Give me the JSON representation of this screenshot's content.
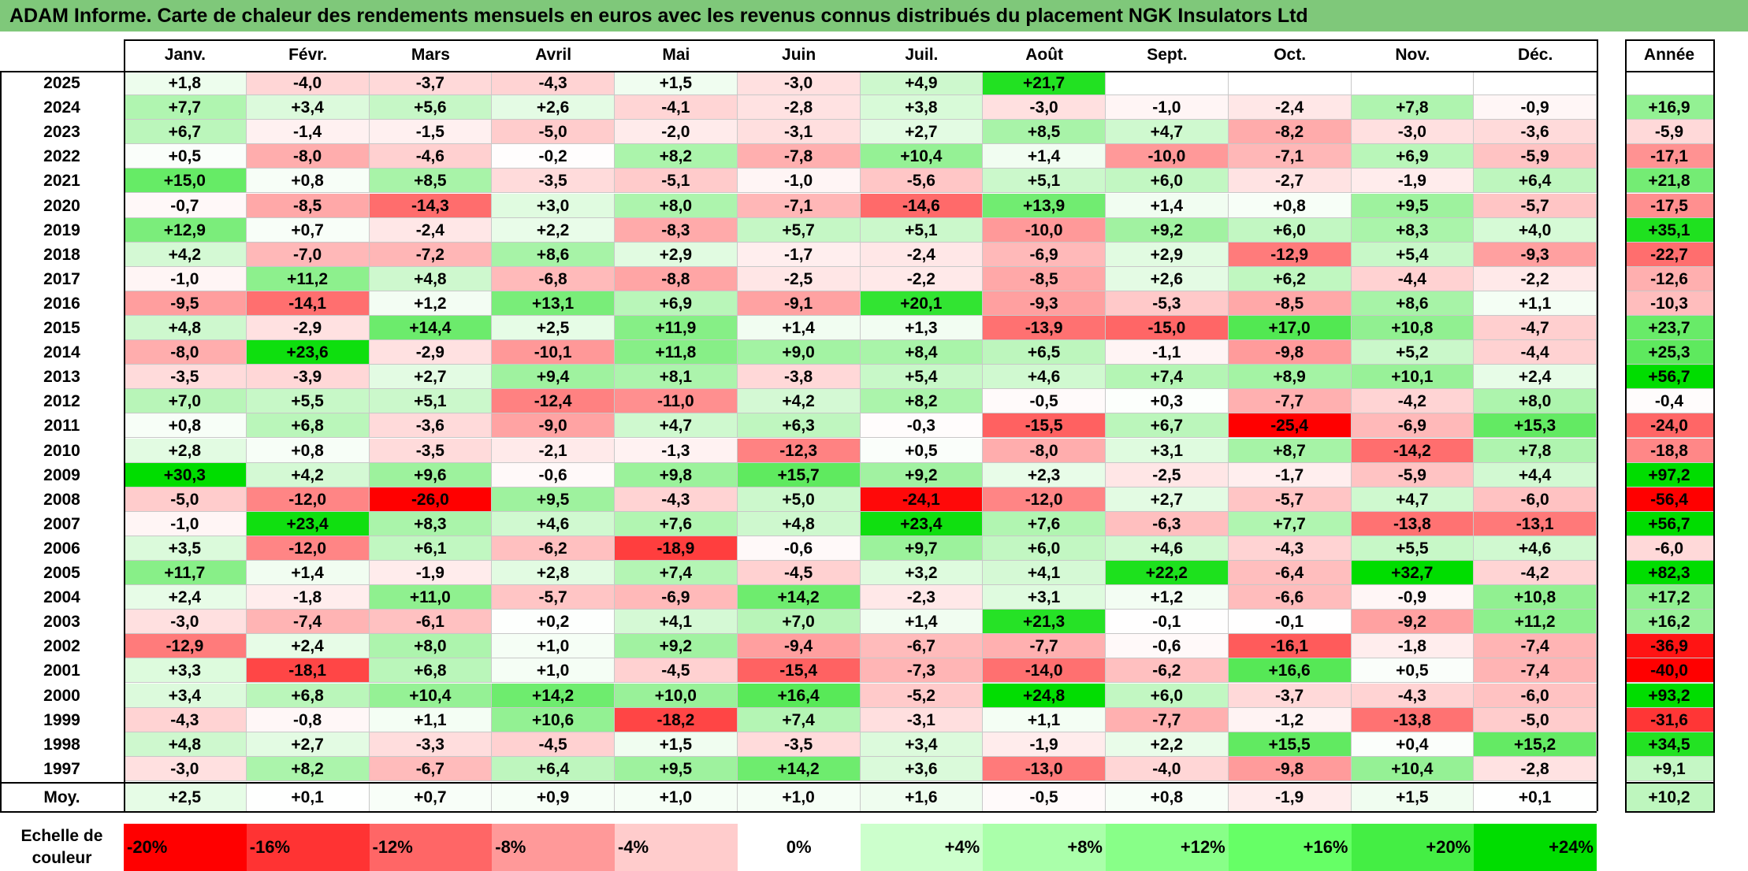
{
  "title": "ADAM Informe. Carte de chaleur des rendements mensuels en euros avec les revenus connus distribués du placement NGK Insulators Ltd",
  "chart_data": {
    "type": "heatmap",
    "title": "ADAM Informe. Carte de chaleur des rendements mensuels en euros avec les revenus connus distribués du placement NGK Insulators Ltd",
    "months": [
      "Janv.",
      "Févr.",
      "Mars",
      "Avril",
      "Mai",
      "Juin",
      "Juil.",
      "Août",
      "Sept.",
      "Oct.",
      "Nov.",
      "Déc."
    ],
    "year_header": "Année",
    "avg_label": "Moy.",
    "rows": [
      {
        "year": "2025",
        "values": [
          "+1,8",
          "-4,0",
          "-3,7",
          "-4,3",
          "+1,5",
          "-3,0",
          "+4,9",
          "+21,7",
          "",
          "",
          "",
          ""
        ],
        "annual": ""
      },
      {
        "year": "2024",
        "values": [
          "+7,7",
          "+3,4",
          "+5,6",
          "+2,6",
          "-4,1",
          "-2,8",
          "+3,8",
          "-3,0",
          "-1,0",
          "-2,4",
          "+7,8",
          "-0,9"
        ],
        "annual": "+16,9"
      },
      {
        "year": "2023",
        "values": [
          "+6,7",
          "-1,4",
          "-1,5",
          "-5,0",
          "-2,0",
          "-3,1",
          "+2,7",
          "+8,5",
          "+4,7",
          "-8,2",
          "-3,0",
          "-3,6"
        ],
        "annual": "-5,9"
      },
      {
        "year": "2022",
        "values": [
          "+0,5",
          "-8,0",
          "-4,6",
          "-0,2",
          "+8,2",
          "-7,8",
          "+10,4",
          "+1,4",
          "-10,0",
          "-7,1",
          "+6,9",
          "-5,9"
        ],
        "annual": "-17,1"
      },
      {
        "year": "2021",
        "values": [
          "+15,0",
          "+0,8",
          "+8,5",
          "-3,5",
          "-5,1",
          "-1,0",
          "-5,6",
          "+5,1",
          "+6,0",
          "-2,7",
          "-1,9",
          "+6,4"
        ],
        "annual": "+21,8"
      },
      {
        "year": "2020",
        "values": [
          "-0,7",
          "-8,5",
          "-14,3",
          "+3,0",
          "+8,0",
          "-7,1",
          "-14,6",
          "+13,9",
          "+1,4",
          "+0,8",
          "+9,5",
          "-5,7"
        ],
        "annual": "-17,5"
      },
      {
        "year": "2019",
        "values": [
          "+12,9",
          "+0,7",
          "-2,4",
          "+2,2",
          "-8,3",
          "+5,7",
          "+5,1",
          "-10,0",
          "+9,2",
          "+6,0",
          "+8,3",
          "+4,0"
        ],
        "annual": "+35,1"
      },
      {
        "year": "2018",
        "values": [
          "+4,2",
          "-7,0",
          "-7,2",
          "+8,6",
          "+2,9",
          "-1,7",
          "-2,4",
          "-6,9",
          "+2,9",
          "-12,9",
          "+5,4",
          "-9,3"
        ],
        "annual": "-22,7"
      },
      {
        "year": "2017",
        "values": [
          "-1,0",
          "+11,2",
          "+4,8",
          "-6,8",
          "-8,8",
          "-2,5",
          "-2,2",
          "-8,5",
          "+2,6",
          "+6,2",
          "-4,4",
          "-2,2"
        ],
        "annual": "-12,6"
      },
      {
        "year": "2016",
        "values": [
          "-9,5",
          "-14,1",
          "+1,2",
          "+13,1",
          "+6,9",
          "-9,1",
          "+20,1",
          "-9,3",
          "-5,3",
          "-8,5",
          "+8,6",
          "+1,1"
        ],
        "annual": "-10,3"
      },
      {
        "year": "2015",
        "values": [
          "+4,8",
          "-2,9",
          "+14,4",
          "+2,5",
          "+11,9",
          "+1,4",
          "+1,3",
          "-13,9",
          "-15,0",
          "+17,0",
          "+10,8",
          "-4,7"
        ],
        "annual": "+23,7"
      },
      {
        "year": "2014",
        "values": [
          "-8,0",
          "+23,6",
          "-2,9",
          "-10,1",
          "+11,8",
          "+9,0",
          "+8,4",
          "+6,5",
          "-1,1",
          "-9,8",
          "+5,2",
          "-4,4"
        ],
        "annual": "+25,3"
      },
      {
        "year": "2013",
        "values": [
          "-3,5",
          "-3,9",
          "+2,7",
          "+9,4",
          "+8,1",
          "-3,8",
          "+5,4",
          "+4,6",
          "+7,4",
          "+8,9",
          "+10,1",
          "+2,4"
        ],
        "annual": "+56,7"
      },
      {
        "year": "2012",
        "values": [
          "+7,0",
          "+5,5",
          "+5,1",
          "-12,4",
          "-11,0",
          "+4,2",
          "+8,2",
          "-0,5",
          "+0,3",
          "-7,7",
          "-4,2",
          "+8,0"
        ],
        "annual": "-0,4"
      },
      {
        "year": "2011",
        "values": [
          "+0,8",
          "+6,8",
          "-3,6",
          "-9,0",
          "+4,7",
          "+6,3",
          "-0,3",
          "-15,5",
          "+6,7",
          "-25,4",
          "-6,9",
          "+15,3"
        ],
        "annual": "-24,0"
      },
      {
        "year": "2010",
        "values": [
          "+2,8",
          "+0,8",
          "-3,5",
          "-2,1",
          "-1,3",
          "-12,3",
          "+0,5",
          "-8,0",
          "+3,1",
          "+8,7",
          "-14,2",
          "+7,8"
        ],
        "annual": "-18,8"
      },
      {
        "year": "2009",
        "values": [
          "+30,3",
          "+4,2",
          "+9,6",
          "-0,6",
          "+9,8",
          "+15,7",
          "+9,2",
          "+2,3",
          "-2,5",
          "-1,7",
          "-5,9",
          "+4,4"
        ],
        "annual": "+97,2"
      },
      {
        "year": "2008",
        "values": [
          "-5,0",
          "-12,0",
          "-26,0",
          "+9,5",
          "-4,3",
          "+5,0",
          "-24,1",
          "-12,0",
          "+2,7",
          "-5,7",
          "+4,7",
          "-6,0"
        ],
        "annual": "-56,4"
      },
      {
        "year": "2007",
        "values": [
          "-1,0",
          "+23,4",
          "+8,3",
          "+4,6",
          "+7,6",
          "+4,8",
          "+23,4",
          "+7,6",
          "-6,3",
          "+7,7",
          "-13,8",
          "-13,1"
        ],
        "annual": "+56,7"
      },
      {
        "year": "2006",
        "values": [
          "+3,5",
          "-12,0",
          "+6,1",
          "-6,2",
          "-18,9",
          "-0,6",
          "+9,7",
          "+6,0",
          "+4,6",
          "-4,3",
          "+5,5",
          "+4,6"
        ],
        "annual": "-6,0"
      },
      {
        "year": "2005",
        "values": [
          "+11,7",
          "+1,4",
          "-1,9",
          "+2,8",
          "+7,4",
          "-4,5",
          "+3,2",
          "+4,1",
          "+22,2",
          "-6,4",
          "+32,7",
          "-4,2"
        ],
        "annual": "+82,3"
      },
      {
        "year": "2004",
        "values": [
          "+2,4",
          "-1,8",
          "+11,0",
          "-5,7",
          "-6,9",
          "+14,2",
          "-2,3",
          "+3,1",
          "+1,2",
          "-6,6",
          "-0,9",
          "+10,8"
        ],
        "annual": "+17,2"
      },
      {
        "year": "2003",
        "values": [
          "-3,0",
          "-7,4",
          "-6,1",
          "+0,2",
          "+4,1",
          "+7,0",
          "+1,4",
          "+21,3",
          "-0,1",
          "-0,1",
          "-9,2",
          "+11,2"
        ],
        "annual": "+16,2"
      },
      {
        "year": "2002",
        "values": [
          "-12,9",
          "+2,4",
          "+8,0",
          "+1,0",
          "+9,2",
          "-9,4",
          "-6,7",
          "-7,7",
          "-0,6",
          "-16,1",
          "-1,8",
          "-7,4"
        ],
        "annual": "-36,9"
      },
      {
        "year": "2001",
        "values": [
          "+3,3",
          "-18,1",
          "+6,8",
          "+1,0",
          "-4,5",
          "-15,4",
          "-7,3",
          "-14,0",
          "-6,2",
          "+16,6",
          "+0,5",
          "-7,4"
        ],
        "annual": "-40,0"
      },
      {
        "year": "2000",
        "values": [
          "+3,4",
          "+6,8",
          "+10,4",
          "+14,2",
          "+10,0",
          "+16,4",
          "-5,2",
          "+24,8",
          "+6,0",
          "-3,7",
          "-4,3",
          "-6,0"
        ],
        "annual": "+93,2"
      },
      {
        "year": "1999",
        "values": [
          "-4,3",
          "-0,8",
          "+1,1",
          "+10,6",
          "-18,2",
          "+7,4",
          "-3,1",
          "+1,1",
          "-7,7",
          "-1,2",
          "-13,8",
          "-5,0"
        ],
        "annual": "-31,6"
      },
      {
        "year": "1998",
        "values": [
          "+4,8",
          "+2,7",
          "-3,3",
          "-4,5",
          "+1,5",
          "-3,5",
          "+3,4",
          "-1,9",
          "+2,2",
          "+15,5",
          "+0,4",
          "+15,2"
        ],
        "annual": "+34,5"
      },
      {
        "year": "1997",
        "values": [
          "-3,0",
          "+8,2",
          "-6,7",
          "+6,4",
          "+9,5",
          "+14,2",
          "+3,6",
          "-13,0",
          "-4,0",
          "-9,8",
          "+10,4",
          "-2,8"
        ],
        "annual": "+9,1"
      }
    ],
    "average": {
      "values": [
        "+2,5",
        "+0,1",
        "+0,7",
        "+0,9",
        "+1,0",
        "+1,0",
        "+1,6",
        "-0,5",
        "+0,8",
        "-1,9",
        "+1,5",
        "+0,1"
      ],
      "annual": "+10,2"
    },
    "color_scale": {
      "label": "Echelle de couleur",
      "steps": [
        {
          "label": "-20%",
          "color": "#ff0000"
        },
        {
          "label": "-16%",
          "color": "#ff3333"
        },
        {
          "label": "-12%",
          "color": "#ff6666"
        },
        {
          "label": "-8%",
          "color": "#ff9999"
        },
        {
          "label": "-4%",
          "color": "#ffcccc"
        },
        {
          "label": "0%",
          "color": "#ffffff"
        },
        {
          "label": "+4%",
          "color": "#ccffcc"
        },
        {
          "label": "+8%",
          "color": "#aaffaa"
        },
        {
          "label": "+12%",
          "color": "#88ff88"
        },
        {
          "label": "+16%",
          "color": "#66ff66"
        },
        {
          "label": "+20%",
          "color": "#44ee44"
        },
        {
          "label": "+24%",
          "color": "#00dd00"
        }
      ]
    }
  },
  "colors": {
    "title_bg": "#7fc87a",
    "positive_max": "#00dd00",
    "negative_max": "#ff0000"
  }
}
